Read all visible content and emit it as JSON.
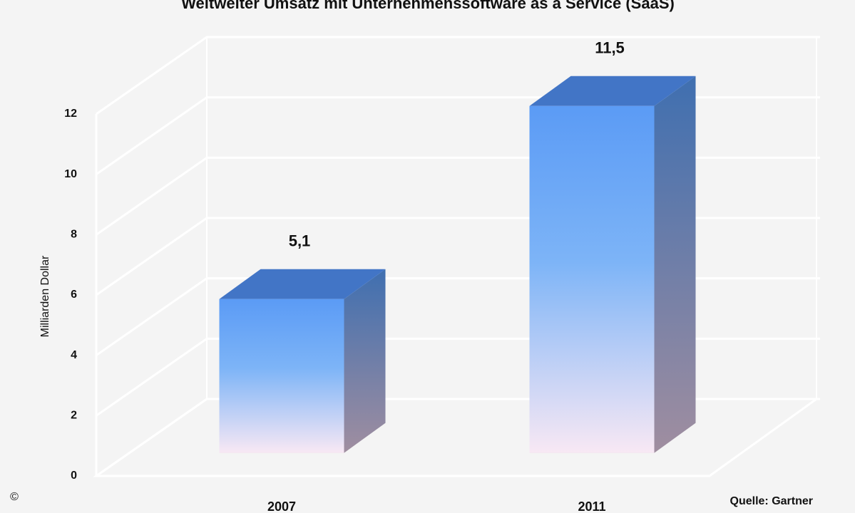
{
  "chart_data": {
    "type": "bar3d",
    "title": "Weltweiter Umsatz mit Unternehmenssoftware as a Service (SaaS)",
    "y_label": "Milliarden Dollar",
    "source": "Quelle: Gartner",
    "copyright": "©",
    "categories": [
      "2007",
      "2011"
    ],
    "values": [
      5.1,
      11.5
    ],
    "value_labels": [
      "5,1",
      "11,5"
    ],
    "color": "#5b9bf5",
    "ylim": [
      0,
      12
    ],
    "yticks": [
      0,
      2,
      4,
      6,
      8,
      10,
      12
    ],
    "grid": true
  }
}
